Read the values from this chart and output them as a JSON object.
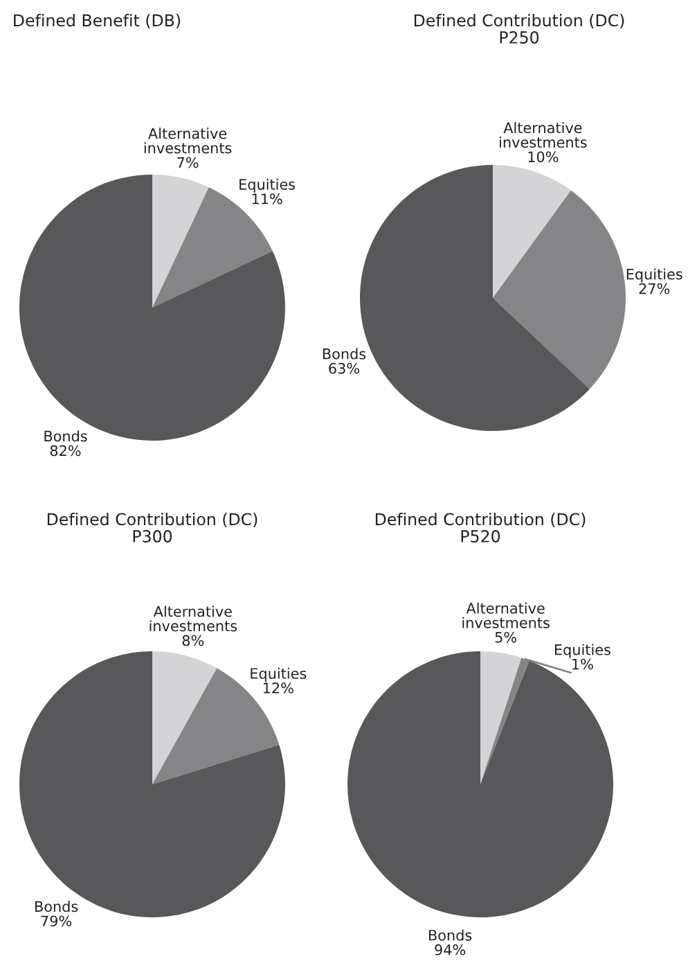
{
  "chart_data": [
    {
      "type": "pie",
      "title": "Defined Benefit (DB)",
      "categories": [
        "Alternative investments",
        "Equities",
        "Bonds"
      ],
      "values": [
        7,
        11,
        82
      ],
      "value_labels": [
        "7%",
        "11%",
        "82%"
      ],
      "colors": [
        "#d4d4d6",
        "#858587",
        "#58585a"
      ],
      "legend": false
    },
    {
      "type": "pie",
      "title": "Defined Contribution (DC)",
      "subtitle": "P250",
      "categories": [
        "Alternative investments",
        "Equities",
        "Bonds"
      ],
      "values": [
        10,
        27,
        63
      ],
      "value_labels": [
        "10%",
        "27%",
        "63%"
      ],
      "colors": [
        "#d4d4d6",
        "#858587",
        "#58585a"
      ],
      "legend": false
    },
    {
      "type": "pie",
      "title": "Defined Contribution (DC)",
      "subtitle": "P300",
      "categories": [
        "Alternative investments",
        "Equities",
        "Bonds"
      ],
      "values": [
        8,
        12,
        79
      ],
      "value_labels": [
        "8%",
        "12%",
        "79%"
      ],
      "colors": [
        "#d4d4d6",
        "#858587",
        "#58585a"
      ],
      "legend": false
    },
    {
      "type": "pie",
      "title": "Defined Contribution (DC)",
      "subtitle": "P520",
      "categories": [
        "Alternative investments",
        "Equities",
        "Bonds"
      ],
      "values": [
        5,
        1,
        94
      ],
      "value_labels": [
        "5%",
        "1%",
        "94%"
      ],
      "colors": [
        "#d4d4d6",
        "#858587",
        "#58585a"
      ],
      "legend": false
    }
  ]
}
